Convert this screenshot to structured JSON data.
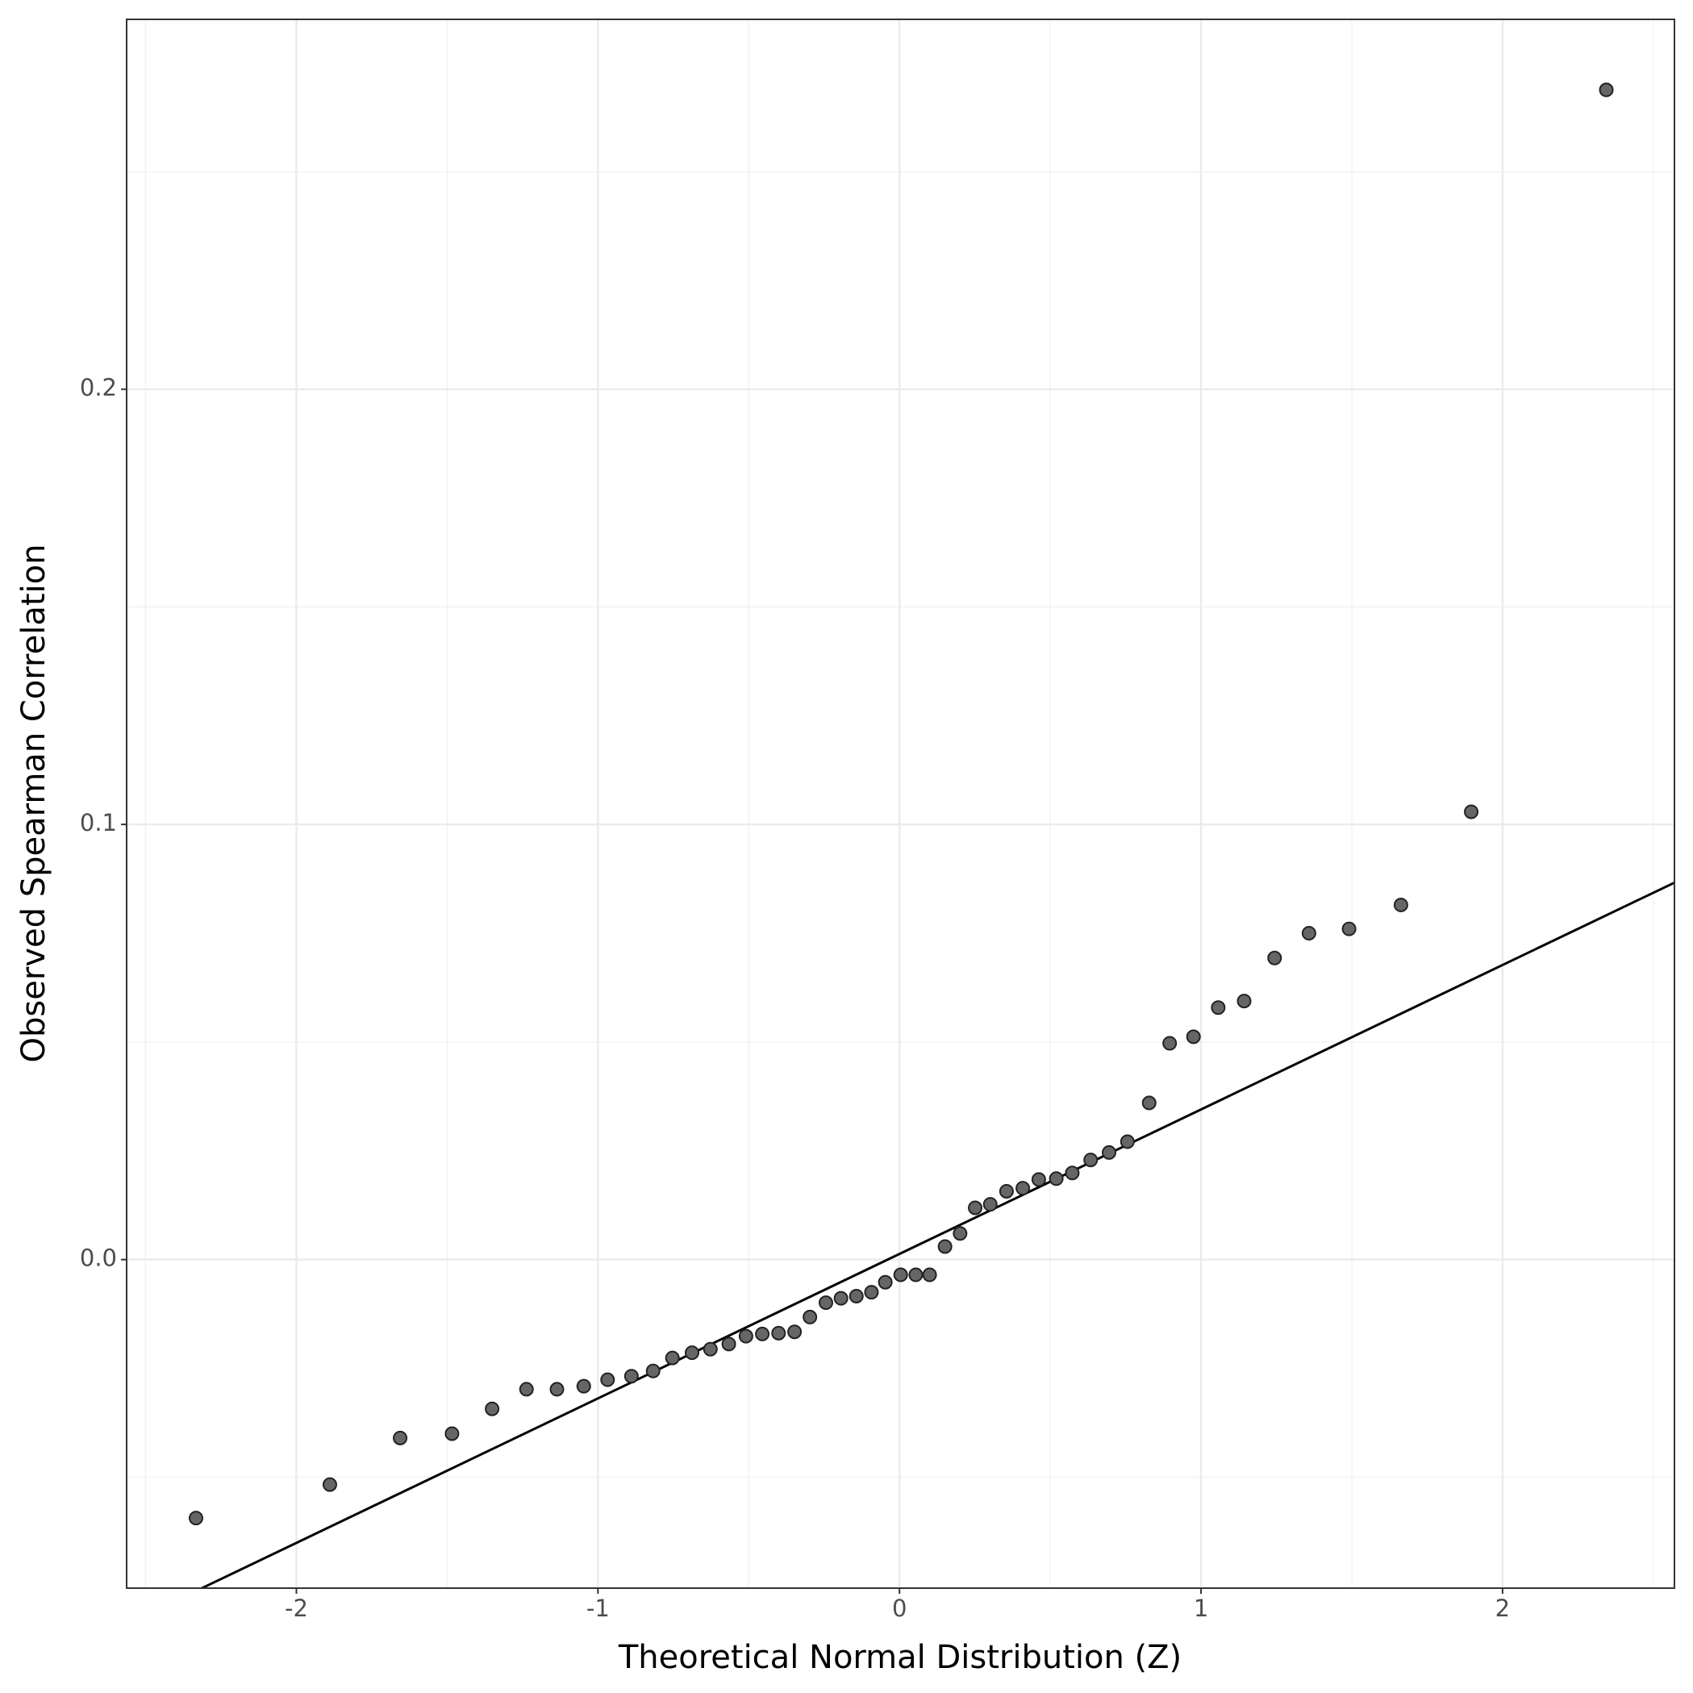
{
  "chart_data": {
    "type": "scatter",
    "x_label": "Theoretical Normal Distribution (Z)",
    "y_label": "Observed Spearman Correlation",
    "xlim": [
      -2.563,
      2.57
    ],
    "ylim": [
      -0.0755,
      0.285
    ],
    "xticks": [
      -2,
      -1,
      0,
      1,
      2
    ],
    "yticks": [
      {
        "value": 0,
        "label": "0.0"
      },
      0.1,
      0.2
    ],
    "x_minor_grid": [
      -2.5,
      -1.5,
      -0.5,
      0.5,
      1.5,
      2.5
    ],
    "y_minor_grid": [
      -0.05,
      0.05,
      0.15,
      0.25
    ],
    "grid": true,
    "color": "#666666",
    "x": [
      -2.333,
      -1.889,
      -1.656,
      -1.484,
      -1.351,
      -1.237,
      -1.136,
      -1.047,
      -0.968,
      -0.889,
      -0.817,
      -0.753,
      -0.688,
      -0.627,
      -0.566,
      -0.509,
      -0.455,
      -0.401,
      -0.348,
      -0.297,
      -0.244,
      -0.194,
      -0.143,
      -0.093,
      -0.047,
      0.004,
      0.054,
      0.1,
      0.151,
      0.201,
      0.251,
      0.301,
      0.355,
      0.409,
      0.462,
      0.52,
      0.573,
      0.634,
      0.695,
      0.756,
      0.828,
      0.896,
      0.975,
      1.057,
      1.143,
      1.244,
      1.358,
      1.491,
      1.663,
      1.896,
      2.344
    ],
    "values": [
      -0.0594,
      -0.0517,
      -0.041,
      -0.04,
      -0.0343,
      -0.0298,
      -0.0298,
      -0.0291,
      -0.0276,
      -0.0268,
      -0.0256,
      -0.0226,
      -0.0214,
      -0.0206,
      -0.0194,
      -0.0176,
      -0.0171,
      -0.0169,
      -0.0166,
      -0.0132,
      -0.0099,
      -0.0089,
      -0.0084,
      -0.0075,
      -0.0052,
      -0.0035,
      -0.0035,
      -0.0035,
      0.003,
      0.006,
      0.0119,
      0.0127,
      0.0157,
      0.0164,
      0.0184,
      0.0186,
      0.0199,
      0.0229,
      0.0246,
      0.0271,
      0.036,
      0.0497,
      0.0512,
      0.0579,
      0.0594,
      0.0693,
      0.075,
      0.076,
      0.0815,
      0.1029,
      0.2688
    ],
    "reference_line": {
      "intercept": 0.0013,
      "slope": 0.0332,
      "color": "#000000"
    }
  }
}
